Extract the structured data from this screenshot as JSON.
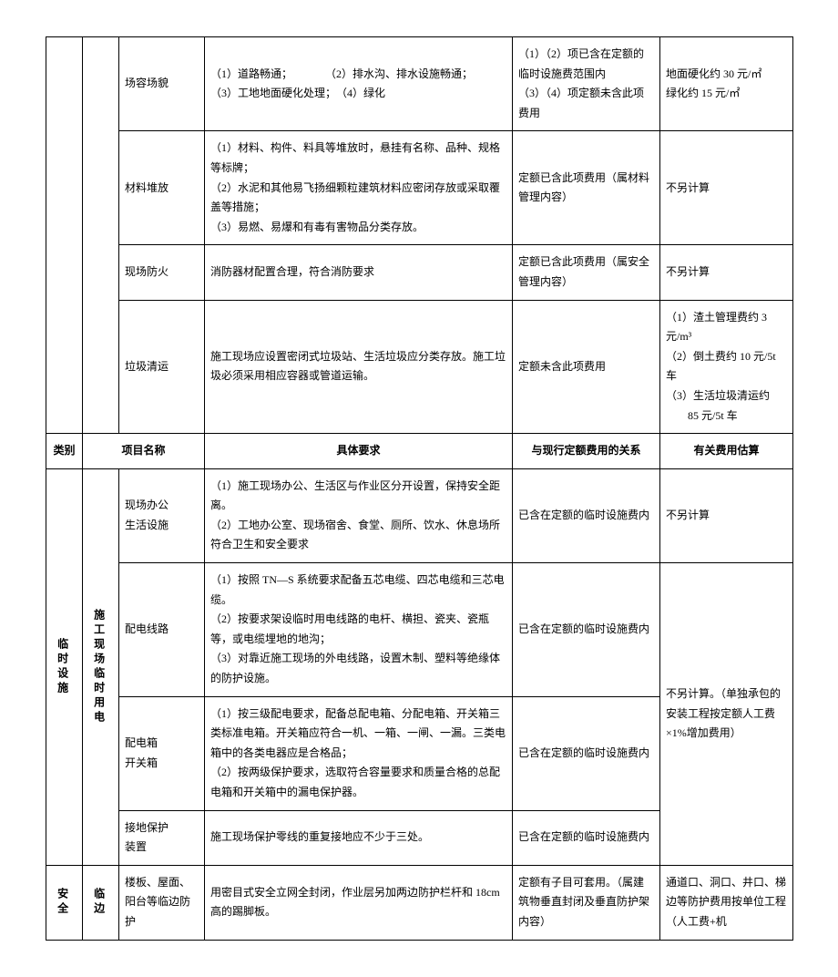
{
  "header": {
    "category": "类别",
    "projectName": "项目名称",
    "requirements": "具体要求",
    "relation": "与现行定额费用的关系",
    "estimate": "有关费用估算"
  },
  "section1": {
    "rows": [
      {
        "name": "场容场貌",
        "req": "（1）道路畅通；　　　　（2）排水沟、排水设施畅通；\n（3）工地地面硬化处理；　（4）绿化",
        "rel": "（1）（2）项已含在定额的临时设施费范围内\n（3）（4）项定额未含此项费用",
        "est": "地面硬化约 30 元/㎡\n绿化约 15 元/㎡"
      },
      {
        "name": "材料堆放",
        "req": "（1）材料、构件、料具等堆放时，悬挂有名称、品种、规格等标牌；\n（2）水泥和其他易飞扬细颗粒建筑材料应密闭存放或采取覆盖等措施；\n（3）易燃、易爆和有毒有害物品分类存放。",
        "rel": "定额已含此项费用（属材料管理内容）",
        "est": "不另计算"
      },
      {
        "name": "现场防火",
        "req": "消防器材配置合理，符合消防要求",
        "rel": "定额已含此项费用（属安全管理内容）",
        "est": "不另计算"
      },
      {
        "name": "垃圾清运",
        "req": "施工现场应设置密闭式垃圾站、生活垃圾应分类存放。施工垃圾必须采用相应容器或管道运输。",
        "rel": "定额未含此项费用",
        "est": "（1）渣土管理费约 3 元/m³\n（2）倒土费约 10 元/5t 车\n（3）生活垃圾清运约\n　　85 元/5t 车"
      }
    ]
  },
  "section2": {
    "catLabel": "临时设施",
    "subLabel": "施工现场临时用电",
    "rows": [
      {
        "name": "现场办公\n生活设施",
        "req": "（1）施工现场办公、生活区与作业区分开设置，保持安全距离。\n（2）工地办公室、现场宿舍、食堂、厕所、饮水、休息场所符合卫生和安全要求",
        "rel": "已含在定额的临时设施费内",
        "est": "不另计算"
      },
      {
        "name": "配电线路",
        "req": "（1）按照 TN—S 系统要求配备五芯电缆、四芯电缆和三芯电缆。\n（2）按要求架设临时用电线路的电杆、横担、瓷夹、瓷瓶等，或电缆埋地的地沟；\n（3）对靠近施工现场的外电线路，设置木制、塑料等绝缘体的防护设施。",
        "rel": "已含在定额的临时设施费内",
        "est_merged": "不另计算。（单独承包的安装工程按定额人工费×1%增加费用）"
      },
      {
        "name": "配电箱\n开关箱",
        "req": "（1）按三级配电要求，配备总配电箱、分配电箱、开关箱三类标准电箱。开关箱应符合一机、一箱、一闸、一漏。三类电箱中的各类电器应是合格品；\n（2）按两级保护要求，选取符合容量要求和质量合格的总配电箱和开关箱中的漏电保护器。",
        "rel": "已含在定额的临时设施费内"
      },
      {
        "name": "接地保护\n装置",
        "req": "施工现场保护零线的重复接地应不少于三处。",
        "rel": "已含在定额的临时设施费内"
      }
    ]
  },
  "section3": {
    "catLabel": "安全",
    "subLabel": "临边",
    "rows": [
      {
        "name": "楼板、屋面、阳台等临边防护",
        "req": "用密目式安全立网全封闭，作业层另加两边防护栏杆和 18cm高的踢脚板。",
        "rel": "定额有子目可套用。（属建筑物垂直封闭及垂直防护架内容）",
        "est": "通道口、洞口、井口、梯边等防护费用按单位工程（人工费+机"
      }
    ]
  },
  "style": {
    "background": "#ffffff",
    "border_color": "#000000",
    "font_size": 12,
    "font_family": "SimSun",
    "line_height": 1.8
  }
}
